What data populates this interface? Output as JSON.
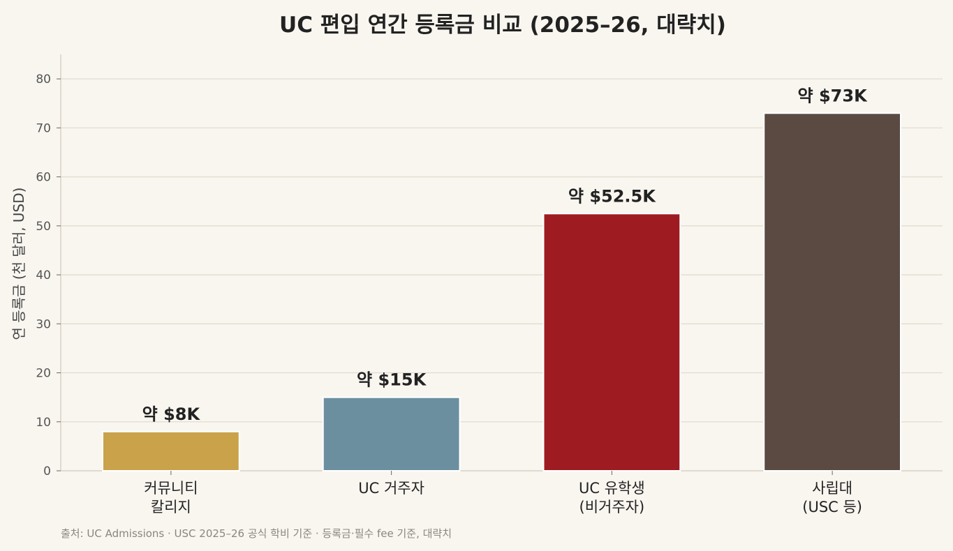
{
  "chart_data": {
    "type": "bar",
    "title": "UC 편입 연간 등록금 비교 (2025–26, 대략치)",
    "ylabel": "연 등록금 (천 달러, USD)",
    "xlabel": "",
    "ylim": [
      0,
      85
    ],
    "yticks": [
      0,
      10,
      20,
      30,
      40,
      50,
      60,
      70,
      80
    ],
    "grid": true,
    "categories": [
      [
        "커뮤니티",
        "칼리지"
      ],
      [
        "UC 거주자"
      ],
      [
        "UC 유학생",
        "(비거주자)"
      ],
      [
        "사립대",
        "(USC 등)"
      ]
    ],
    "values": [
      8,
      15,
      52.5,
      73
    ],
    "data_labels": [
      "약 $8K",
      "약 $15K",
      "약 $52.5K",
      "약 $73K"
    ],
    "colors": [
      "#c9a24a",
      "#6c8f9f",
      "#9e1b21",
      "#5a4a42"
    ],
    "source": "출처: UC Admissions · USC 2025–26 공식 학비 기준 · 등록금·필수 fee 기준, 대략치"
  }
}
